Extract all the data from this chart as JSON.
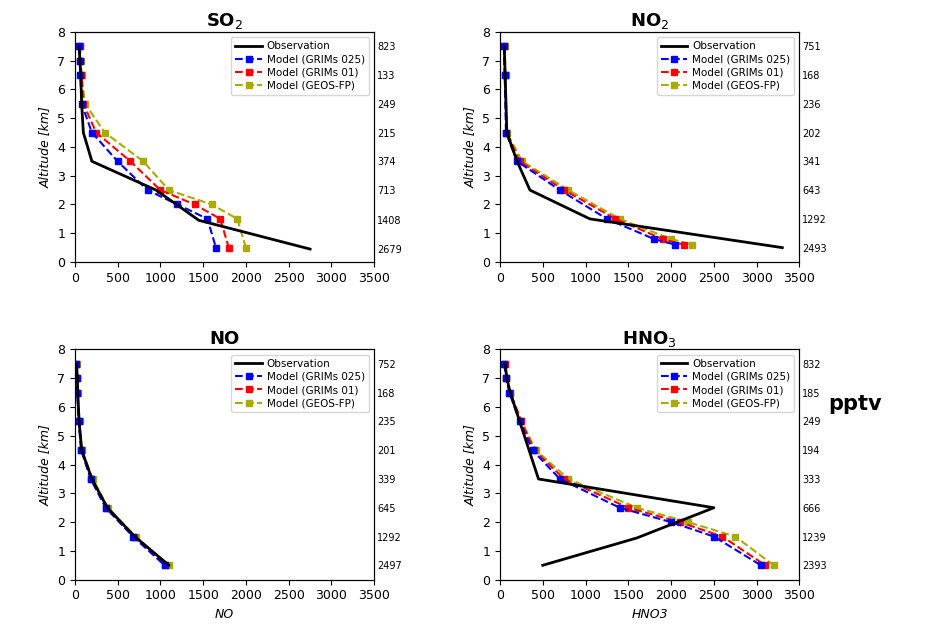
{
  "subplots": [
    {
      "title": "SO$_2$",
      "xlabel": "",
      "right_labels": [
        823,
        133,
        249,
        215,
        374,
        713,
        1408,
        2679
      ],
      "right_label_alts": [
        7.5,
        6.5,
        5.5,
        4.5,
        3.5,
        2.5,
        1.45,
        0.45
      ],
      "obs": {
        "x": [
          50,
          60,
          70,
          80,
          100,
          200,
          950,
          1450,
          2750
        ],
        "y": [
          7.5,
          7.0,
          6.5,
          5.5,
          4.5,
          3.5,
          2.5,
          1.45,
          0.45
        ]
      },
      "grims025": {
        "x": [
          50,
          60,
          65,
          80,
          200,
          500,
          850,
          1200,
          1550,
          1650
        ],
        "y": [
          7.5,
          7.0,
          6.5,
          5.5,
          4.5,
          3.5,
          2.5,
          2.0,
          1.5,
          0.5
        ]
      },
      "grims01": {
        "x": [
          55,
          65,
          75,
          100,
          250,
          650,
          1000,
          1400,
          1700,
          1800
        ],
        "y": [
          7.5,
          7.0,
          6.5,
          5.5,
          4.5,
          3.5,
          2.5,
          2.0,
          1.5,
          0.5
        ]
      },
      "geosfp": {
        "x": [
          60,
          70,
          80,
          120,
          350,
          800,
          1100,
          1600,
          1900,
          2000
        ],
        "y": [
          7.5,
          7.0,
          6.5,
          5.5,
          4.5,
          3.5,
          2.5,
          2.0,
          1.5,
          0.5
        ]
      }
    },
    {
      "title": "NO$_2$",
      "xlabel": "",
      "right_labels": [
        751,
        168,
        236,
        202,
        341,
        643,
        1292,
        2493
      ],
      "right_label_alts": [
        7.5,
        6.5,
        5.5,
        4.5,
        3.5,
        2.5,
        1.5,
        0.5
      ],
      "obs": {
        "x": [
          50,
          60,
          80,
          200,
          350,
          1050,
          3300
        ],
        "y": [
          7.5,
          6.5,
          4.5,
          3.5,
          2.5,
          1.5,
          0.5
        ]
      },
      "grims025": {
        "x": [
          45,
          55,
          70,
          200,
          700,
          1250,
          1800,
          2050
        ],
        "y": [
          7.5,
          6.5,
          4.5,
          3.5,
          2.5,
          1.5,
          0.8,
          0.6
        ]
      },
      "grims01": {
        "x": [
          50,
          60,
          75,
          230,
          750,
          1350,
          1900,
          2150
        ],
        "y": [
          7.5,
          6.5,
          4.5,
          3.5,
          2.5,
          1.5,
          0.8,
          0.6
        ]
      },
      "geosfp": {
        "x": [
          55,
          65,
          80,
          260,
          800,
          1400,
          2000,
          2250
        ],
        "y": [
          7.5,
          6.5,
          4.5,
          3.5,
          2.5,
          1.5,
          0.8,
          0.6
        ]
      }
    },
    {
      "title": "NO",
      "xlabel": "NO",
      "right_labels": [
        752,
        168,
        235,
        201,
        339,
        645,
        1292,
        2497
      ],
      "right_label_alts": [
        7.5,
        6.5,
        5.5,
        4.5,
        3.5,
        2.5,
        1.5,
        0.5
      ],
      "obs": {
        "x": [
          20,
          30,
          35,
          50,
          80,
          200,
          380,
          700,
          1100
        ],
        "y": [
          7.5,
          7.0,
          6.5,
          5.5,
          4.5,
          3.5,
          2.5,
          1.5,
          0.5
        ]
      },
      "grims025": {
        "x": [
          18,
          25,
          30,
          45,
          75,
          185,
          360,
          680,
          1050
        ],
        "y": [
          7.5,
          7.0,
          6.5,
          5.5,
          4.5,
          3.5,
          2.5,
          1.5,
          0.5
        ]
      },
      "grims01": {
        "x": [
          18,
          25,
          30,
          48,
          78,
          195,
          370,
          690,
          1060
        ],
        "y": [
          7.5,
          7.0,
          6.5,
          5.5,
          4.5,
          3.5,
          2.5,
          1.5,
          0.5
        ]
      },
      "geosfp": {
        "x": [
          20,
          28,
          33,
          55,
          85,
          210,
          390,
          710,
          1100
        ],
        "y": [
          7.5,
          7.0,
          6.5,
          5.5,
          4.5,
          3.5,
          2.5,
          1.5,
          0.5
        ]
      }
    },
    {
      "title": "HNO$_3$",
      "xlabel": "HNO3",
      "right_labels": [
        832,
        185,
        249,
        194,
        333,
        666,
        1239,
        2393
      ],
      "right_label_alts": [
        7.5,
        6.5,
        5.5,
        4.5,
        3.5,
        2.5,
        1.5,
        0.5
      ],
      "obs": {
        "x": [
          60,
          80,
          120,
          230,
          340,
          450,
          2500,
          1600,
          500
        ],
        "y": [
          7.5,
          7.0,
          6.5,
          5.5,
          4.5,
          3.5,
          2.5,
          1.45,
          0.5
        ]
      },
      "grims025": {
        "x": [
          50,
          70,
          110,
          230,
          380,
          700,
          1400,
          2000,
          2500,
          3050
        ],
        "y": [
          7.5,
          7.0,
          6.5,
          5.5,
          4.5,
          3.5,
          2.5,
          2.0,
          1.5,
          0.5
        ]
      },
      "grims01": {
        "x": [
          55,
          75,
          120,
          250,
          400,
          750,
          1500,
          2100,
          2600,
          3100
        ],
        "y": [
          7.5,
          7.0,
          6.5,
          5.5,
          4.5,
          3.5,
          2.5,
          2.0,
          1.5,
          0.5
        ]
      },
      "geosfp": {
        "x": [
          55,
          75,
          120,
          250,
          420,
          800,
          1600,
          2200,
          2750,
          3200
        ],
        "y": [
          7.5,
          7.0,
          6.5,
          5.5,
          4.5,
          3.5,
          2.5,
          2.0,
          1.5,
          0.5
        ]
      }
    }
  ],
  "obs_color": "#000000",
  "grims025_color": "#0000FF",
  "grims01_color": "#FF0000",
  "geosfp_color": "#AAAA00",
  "marker_size": 4,
  "xlim": [
    0,
    3500
  ],
  "ylim": [
    0,
    8
  ],
  "yticks": [
    0,
    1,
    2,
    3,
    4,
    5,
    6,
    7,
    8
  ],
  "xticks": [
    0,
    500,
    1000,
    1500,
    2000,
    2500,
    3000,
    3500
  ],
  "ylabel": "Altitude [km]",
  "pptv_label": "pptv",
  "background_color": "#FFFFFF"
}
